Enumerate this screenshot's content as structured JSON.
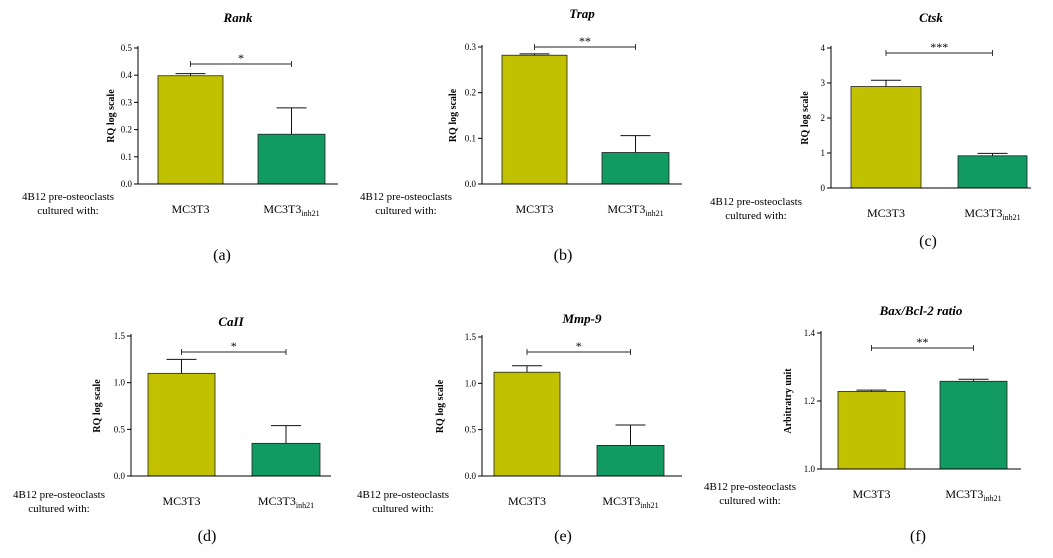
{
  "row_label": [
    "4B12 pre-osteoclasts",
    "cultured with:"
  ],
  "colors": {
    "mc3t3": "#c1c100",
    "inh21": "#129a63",
    "axis": "#000000"
  },
  "chart_data": [
    {
      "type": "bar",
      "panel": "(a)",
      "title": "Rank",
      "ylabel": "RQ log scale",
      "categories": [
        "MC3T3",
        "MC3T3inh21"
      ],
      "category_subscripts": [
        "",
        "inh21"
      ],
      "ylim": [
        0,
        0.5
      ],
      "yticks": [
        "0.0",
        "0.1",
        "0.2",
        "0.3",
        "0.4",
        "0.5"
      ],
      "values": [
        0.398,
        0.183
      ],
      "errors": [
        0.008,
        0.097
      ],
      "significance": "*"
    },
    {
      "type": "bar",
      "panel": "(b)",
      "title": "Trap",
      "ylabel": "RQ log scale",
      "categories": [
        "MC3T3",
        "MC3T3inh21"
      ],
      "category_subscripts": [
        "",
        "inh21"
      ],
      "ylim": [
        0,
        0.3
      ],
      "yticks": [
        "0.0",
        "0.1",
        "0.2",
        "0.3"
      ],
      "values": [
        0.282,
        0.069
      ],
      "errors": [
        0.003,
        0.037
      ],
      "significance": "**"
    },
    {
      "type": "bar",
      "panel": "(c)",
      "title": "Ctsk",
      "ylabel": "RQ log scale",
      "categories": [
        "MC3T3",
        "MC3T3inh21"
      ],
      "category_subscripts": [
        "",
        "inh21"
      ],
      "ylim": [
        0,
        4
      ],
      "yticks": [
        "0",
        "1",
        "2",
        "3",
        "4"
      ],
      "values": [
        2.9,
        0.92
      ],
      "errors": [
        0.18,
        0.07
      ],
      "significance": "***"
    },
    {
      "type": "bar",
      "panel": "(d)",
      "title": "CaII",
      "ylabel": "RQ log scale",
      "categories": [
        "MC3T3",
        "MC3T3inh21"
      ],
      "category_subscripts": [
        "",
        "inh21"
      ],
      "ylim": [
        0,
        1.5
      ],
      "yticks": [
        "0.0",
        "0.5",
        "1.0",
        "1.5"
      ],
      "values": [
        1.1,
        0.35
      ],
      "errors": [
        0.15,
        0.19
      ],
      "significance": "*"
    },
    {
      "type": "bar",
      "panel": "(e)",
      "title": "Mmp-9",
      "ylabel": "RQ log scale",
      "categories": [
        "MC3T3",
        "MC3T3inh21"
      ],
      "category_subscripts": [
        "",
        "inh21"
      ],
      "ylim": [
        0,
        1.5
      ],
      "yticks": [
        "0.0",
        "0.5",
        "1.0",
        "1.5"
      ],
      "values": [
        1.12,
        0.33
      ],
      "errors": [
        0.07,
        0.22
      ],
      "significance": "*"
    },
    {
      "type": "bar",
      "panel": "(f)",
      "title": "Bax/Bcl-2 ratio",
      "ylabel": "Arbitratry unit",
      "categories": [
        "MC3T3",
        "MC3T3inh21"
      ],
      "category_subscripts": [
        "",
        "inh21"
      ],
      "ylim": [
        1.0,
        1.4
      ],
      "yticks": [
        "1.0",
        "1.2",
        "1.4"
      ],
      "values": [
        1.228,
        1.258
      ],
      "errors": [
        0.004,
        0.006
      ],
      "significance": "**"
    }
  ]
}
